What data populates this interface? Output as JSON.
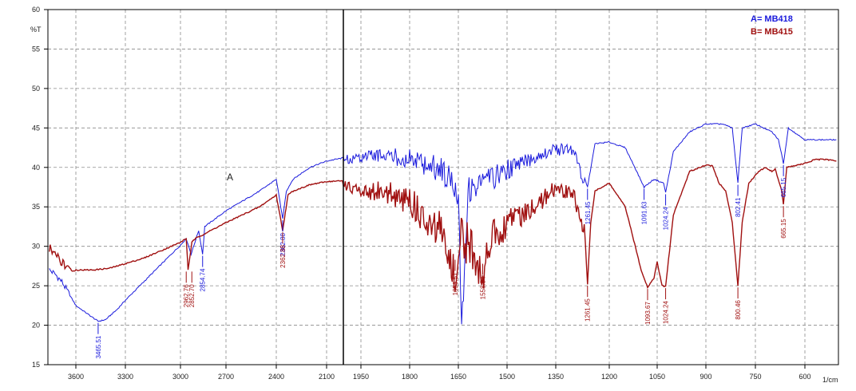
{
  "chart_data": {
    "type": "line",
    "xlabel": "1/cm",
    "ylabel": "%T",
    "xlim": [
      4000,
      440
    ],
    "ylim": [
      15,
      60
    ],
    "x_ticks": [
      3600,
      3300,
      3000,
      2700,
      2400,
      2100,
      1950,
      1800,
      1650,
      1500,
      1350,
      1200,
      1050,
      900,
      750,
      600
    ],
    "y_ticks": [
      15,
      20,
      25,
      30,
      35,
      40,
      45,
      50,
      55,
      60
    ],
    "grid": true,
    "legend_position": "top-right",
    "annotation": "A",
    "vertical_marker_x": 2000,
    "series": [
      {
        "name": "A= MB418",
        "color": "#1a1adc",
        "points": [
          [
            3980,
            27
          ],
          [
            3900,
            26.5
          ],
          [
            3800,
            25.5
          ],
          [
            3700,
            24
          ],
          [
            3600,
            22.5
          ],
          [
            3500,
            21
          ],
          [
            3465,
            20.5
          ],
          [
            3420,
            20.7
          ],
          [
            3350,
            22
          ],
          [
            3200,
            25.5
          ],
          [
            3050,
            29
          ],
          [
            2962,
            31
          ],
          [
            2930,
            29
          ],
          [
            2880,
            32
          ],
          [
            2854,
            29
          ],
          [
            2840,
            32.5
          ],
          [
            2700,
            34.5
          ],
          [
            2500,
            37
          ],
          [
            2400,
            38.5
          ],
          [
            2362,
            33.5
          ],
          [
            2340,
            37
          ],
          [
            2300,
            38.5
          ],
          [
            2200,
            40
          ],
          [
            2100,
            40.8
          ],
          [
            2000,
            41.2
          ],
          [
            1950,
            42
          ],
          [
            1900,
            42.5
          ],
          [
            1800,
            42.5
          ],
          [
            1700,
            41.5
          ],
          [
            1650,
            39
          ],
          [
            1640,
            22
          ],
          [
            1620,
            39
          ],
          [
            1560,
            40
          ],
          [
            1500,
            41
          ],
          [
            1400,
            42.5
          ],
          [
            1350,
            43
          ],
          [
            1300,
            43
          ],
          [
            1261,
            37.5
          ],
          [
            1240,
            43
          ],
          [
            1200,
            43.2
          ],
          [
            1150,
            42.5
          ],
          [
            1120,
            40
          ],
          [
            1091,
            37.5
          ],
          [
            1060,
            38.5
          ],
          [
            1030,
            38
          ],
          [
            1024,
            36.8
          ],
          [
            1000,
            42
          ],
          [
            950,
            44.5
          ],
          [
            900,
            45.5
          ],
          [
            850,
            45.5
          ],
          [
            820,
            45
          ],
          [
            803,
            38
          ],
          [
            790,
            45
          ],
          [
            750,
            45.5
          ],
          [
            700,
            44.5
          ],
          [
            680,
            43.5
          ],
          [
            665,
            40.5
          ],
          [
            650,
            45
          ],
          [
            600,
            43.5
          ],
          [
            550,
            43.5
          ],
          [
            500,
            43.5
          ],
          [
            450,
            43.5
          ]
        ]
      },
      {
        "name": "B= MB415",
        "color": "#a01010",
        "points": [
          [
            3980,
            30.5
          ],
          [
            3900,
            29.5
          ],
          [
            3800,
            28.5
          ],
          [
            3700,
            27.5
          ],
          [
            3650,
            26.8
          ],
          [
            3600,
            27
          ],
          [
            3500,
            27
          ],
          [
            3400,
            27.2
          ],
          [
            3300,
            27.8
          ],
          [
            3200,
            28.5
          ],
          [
            3100,
            29.5
          ],
          [
            3000,
            30.5
          ],
          [
            2962,
            31
          ],
          [
            2950,
            27
          ],
          [
            2925,
            30.5
          ],
          [
            2900,
            31
          ],
          [
            2850,
            31.5
          ],
          [
            2700,
            33
          ],
          [
            2500,
            35
          ],
          [
            2400,
            36.5
          ],
          [
            2362,
            32
          ],
          [
            2330,
            36.5
          ],
          [
            2300,
            37
          ],
          [
            2200,
            37.8
          ],
          [
            2100,
            38.2
          ],
          [
            2000,
            38.3
          ],
          [
            1950,
            38.3
          ],
          [
            1850,
            38.2
          ],
          [
            1800,
            37.5
          ],
          [
            1750,
            36
          ],
          [
            1700,
            34.5
          ],
          [
            1680,
            31
          ],
          [
            1660,
            28.5
          ],
          [
            1650,
            34
          ],
          [
            1620,
            33
          ],
          [
            1600,
            32
          ],
          [
            1575,
            28
          ],
          [
            1560,
            33
          ],
          [
            1500,
            35
          ],
          [
            1450,
            36
          ],
          [
            1400,
            37
          ],
          [
            1350,
            38.5
          ],
          [
            1300,
            37.5
          ],
          [
            1270,
            33
          ],
          [
            1261,
            25.2
          ],
          [
            1252,
            33
          ],
          [
            1240,
            37
          ],
          [
            1200,
            38
          ],
          [
            1150,
            35
          ],
          [
            1100,
            27
          ],
          [
            1080,
            24.8
          ],
          [
            1060,
            26
          ],
          [
            1050,
            28
          ],
          [
            1035,
            25
          ],
          [
            1024,
            24.9
          ],
          [
            1000,
            34
          ],
          [
            950,
            39.5
          ],
          [
            900,
            40.3
          ],
          [
            880,
            40.2
          ],
          [
            860,
            38
          ],
          [
            840,
            37
          ],
          [
            820,
            33
          ],
          [
            803,
            25
          ],
          [
            790,
            33
          ],
          [
            770,
            38
          ],
          [
            740,
            39.5
          ],
          [
            720,
            40
          ],
          [
            700,
            39.5
          ],
          [
            690,
            39.8
          ],
          [
            670,
            37
          ],
          [
            665,
            35.3
          ],
          [
            655,
            40
          ],
          [
            600,
            40.5
          ],
          [
            550,
            41
          ],
          [
            500,
            41
          ],
          [
            450,
            40.8
          ]
        ]
      }
    ],
    "peak_labels": [
      {
        "series": 0,
        "x": 3465,
        "y": 20.5,
        "text": "3465.51"
      },
      {
        "series": 0,
        "x": 2854,
        "y": 29,
        "text": "2854.74"
      },
      {
        "series": 0,
        "x": 2362,
        "y": 33.5,
        "text": "2362.88"
      },
      {
        "series": 0,
        "x": 1261,
        "y": 37.5,
        "text": "1261.45"
      },
      {
        "series": 0,
        "x": 1091,
        "y": 37.5,
        "text": "1091.63"
      },
      {
        "series": 0,
        "x": 1024,
        "y": 36.8,
        "text": "1024.24"
      },
      {
        "series": 0,
        "x": 803,
        "y": 38,
        "text": "802.41"
      },
      {
        "series": 0,
        "x": 665,
        "y": 40.5,
        "text": "665.15"
      },
      {
        "series": 1,
        "x": 2962,
        "y": 27,
        "text": "2962.76"
      },
      {
        "series": 1,
        "x": 2925,
        "y": 27,
        "text": "2852.70"
      },
      {
        "series": 1,
        "x": 2362,
        "y": 32,
        "text": "2362.88"
      },
      {
        "series": 1,
        "x": 1660,
        "y": 28.5,
        "text": "1653.51"
      },
      {
        "series": 1,
        "x": 1575,
        "y": 28,
        "text": "1558.54"
      },
      {
        "series": 1,
        "x": 1261,
        "y": 25.2,
        "text": "1261.45"
      },
      {
        "series": 1,
        "x": 1080,
        "y": 24.8,
        "text": "1093.67"
      },
      {
        "series": 1,
        "x": 1024,
        "y": 24.9,
        "text": "1024.24"
      },
      {
        "series": 1,
        "x": 803,
        "y": 25,
        "text": "800.46"
      },
      {
        "series": 1,
        "x": 665,
        "y": 35.3,
        "text": "665.15"
      }
    ]
  }
}
